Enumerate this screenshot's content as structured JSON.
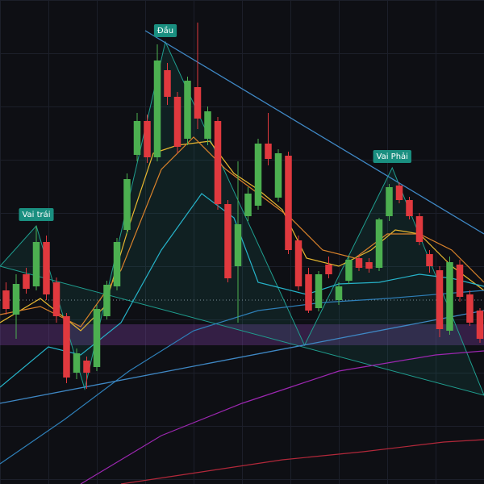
{
  "chart_data": {
    "type": "candlestick",
    "xlim": [
      -0.6,
      47.4
    ],
    "ylim": [
      0,
      600
    ],
    "up_color": "#4caf50",
    "down_color": "#e0393e",
    "open": [
      240,
      210,
      260,
      245,
      300,
      250,
      208,
      138,
      153,
      145,
      208,
      245,
      315,
      408,
      450,
      405,
      513,
      480,
      428,
      492,
      428,
      450,
      347,
      270,
      332,
      345,
      422,
      355,
      407,
      302,
      260,
      218,
      272,
      228,
      252,
      280,
      275,
      268,
      332,
      370,
      352,
      332,
      285,
      265,
      190,
      272,
      235,
      215
    ],
    "high": [
      250,
      260,
      268,
      320,
      308,
      256,
      212,
      168,
      158,
      222,
      252,
      305,
      385,
      460,
      458,
      545,
      522,
      486,
      505,
      572,
      468,
      455,
      352,
      400,
      368,
      428,
      460,
      415,
      412,
      308,
      268,
      264,
      282,
      250,
      282,
      284,
      280,
      330,
      372,
      374,
      356,
      336,
      290,
      270,
      282,
      278,
      240,
      218
    ],
    "low": [
      210,
      180,
      236,
      240,
      228,
      200,
      125,
      130,
      118,
      140,
      204,
      240,
      310,
      400,
      398,
      400,
      470,
      410,
      420,
      440,
      420,
      340,
      250,
      200,
      326,
      340,
      395,
      350,
      285,
      240,
      212,
      214,
      255,
      222,
      248,
      264,
      262,
      264,
      326,
      348,
      328,
      296,
      262,
      182,
      185,
      226,
      196,
      175
    ],
    "close": [
      217,
      248,
      242,
      300,
      235,
      208,
      132,
      162,
      138,
      217,
      247,
      300,
      378,
      450,
      405,
      525,
      480,
      418,
      500,
      453,
      462,
      347,
      255,
      322,
      360,
      422,
      403,
      410,
      290,
      245,
      215,
      260,
      260,
      245,
      278,
      268,
      267,
      328,
      368,
      352,
      332,
      300,
      270,
      192,
      275,
      232,
      200,
      180
    ],
    "lines": [
      {
        "color": "#e8b830",
        "x": [
          -0.6,
          3.4,
          7.4,
          9.8,
          12.2,
          14.6,
          17,
          20.2,
          22.6,
          25,
          27.4,
          29.8,
          33,
          36.2,
          38.6,
          41,
          44.2,
          47.4
        ],
        "values": [
          200,
          230,
          190,
          220,
          320,
          410,
          420,
          425,
          385,
          365,
          340,
          280,
          270,
          290,
          315,
          310,
          270,
          240
        ]
      },
      {
        "color": "#d9822b",
        "x": [
          -0.6,
          3.4,
          7.4,
          11.4,
          15.4,
          18.6,
          21.8,
          25,
          28.2,
          31.4,
          34.6,
          37.8,
          41,
          44.2,
          47.4
        ],
        "values": [
          210,
          220,
          195,
          265,
          390,
          430,
          390,
          360,
          330,
          290,
          280,
          310,
          310,
          290,
          250
        ]
      },
      {
        "color": "#26b3c9",
        "x": [
          -0.6,
          4.2,
          7.4,
          11.4,
          15.4,
          19.4,
          22.6,
          25,
          29.8,
          33,
          37,
          41,
          44.2,
          47.4
        ],
        "values": [
          120,
          170,
          160,
          200,
          290,
          360,
          330,
          250,
          235,
          248,
          250,
          260,
          255,
          245
        ]
      },
      {
        "color": "#2e7fb8",
        "x": [
          -0.6,
          5.8,
          12.2,
          18.6,
          25,
          31.4,
          37.8,
          47.4
        ],
        "values": [
          25,
          80,
          140,
          190,
          215,
          225,
          230,
          240
        ]
      },
      {
        "color": "#9c27b0",
        "x": [
          7.4,
          15.4,
          23.4,
          28.2,
          33,
          37.8,
          42.6,
          47.4
        ],
        "values": [
          0,
          60,
          100,
          120,
          140,
          150,
          160,
          165
        ]
      },
      {
        "color": "#b2283a",
        "x": [
          11.4,
          19.4,
          27.4,
          35.4,
          43.4,
          47.4
        ],
        "values": [
          0,
          15,
          30,
          40,
          52,
          55
        ]
      }
    ],
    "resistance": {
      "x": [
        13.8,
        47.4
      ],
      "values": [
        562,
        310
      ],
      "color": "#3f88c5"
    },
    "neckline": {
      "x": [
        -0.6,
        47.4
      ],
      "values": [
        100,
        215
      ],
      "color": "#3f88c5"
    },
    "zone": {
      "values": [
        172,
        198
      ],
      "color": "#7b3fa0"
    },
    "support_level": 228,
    "pattern": {
      "x": [
        -0.6,
        3,
        7.8,
        15.8,
        29.6,
        38.3,
        47.4
      ],
      "values": [
        270,
        320,
        118,
        548,
        172,
        392,
        110
      ],
      "color": "#1f9e8f"
    },
    "annotations": [
      {
        "text": "Vai trái",
        "point": 1
      },
      {
        "text": "Đầu",
        "point": 3
      },
      {
        "text": "Vai Phải",
        "point": 5
      }
    ]
  }
}
